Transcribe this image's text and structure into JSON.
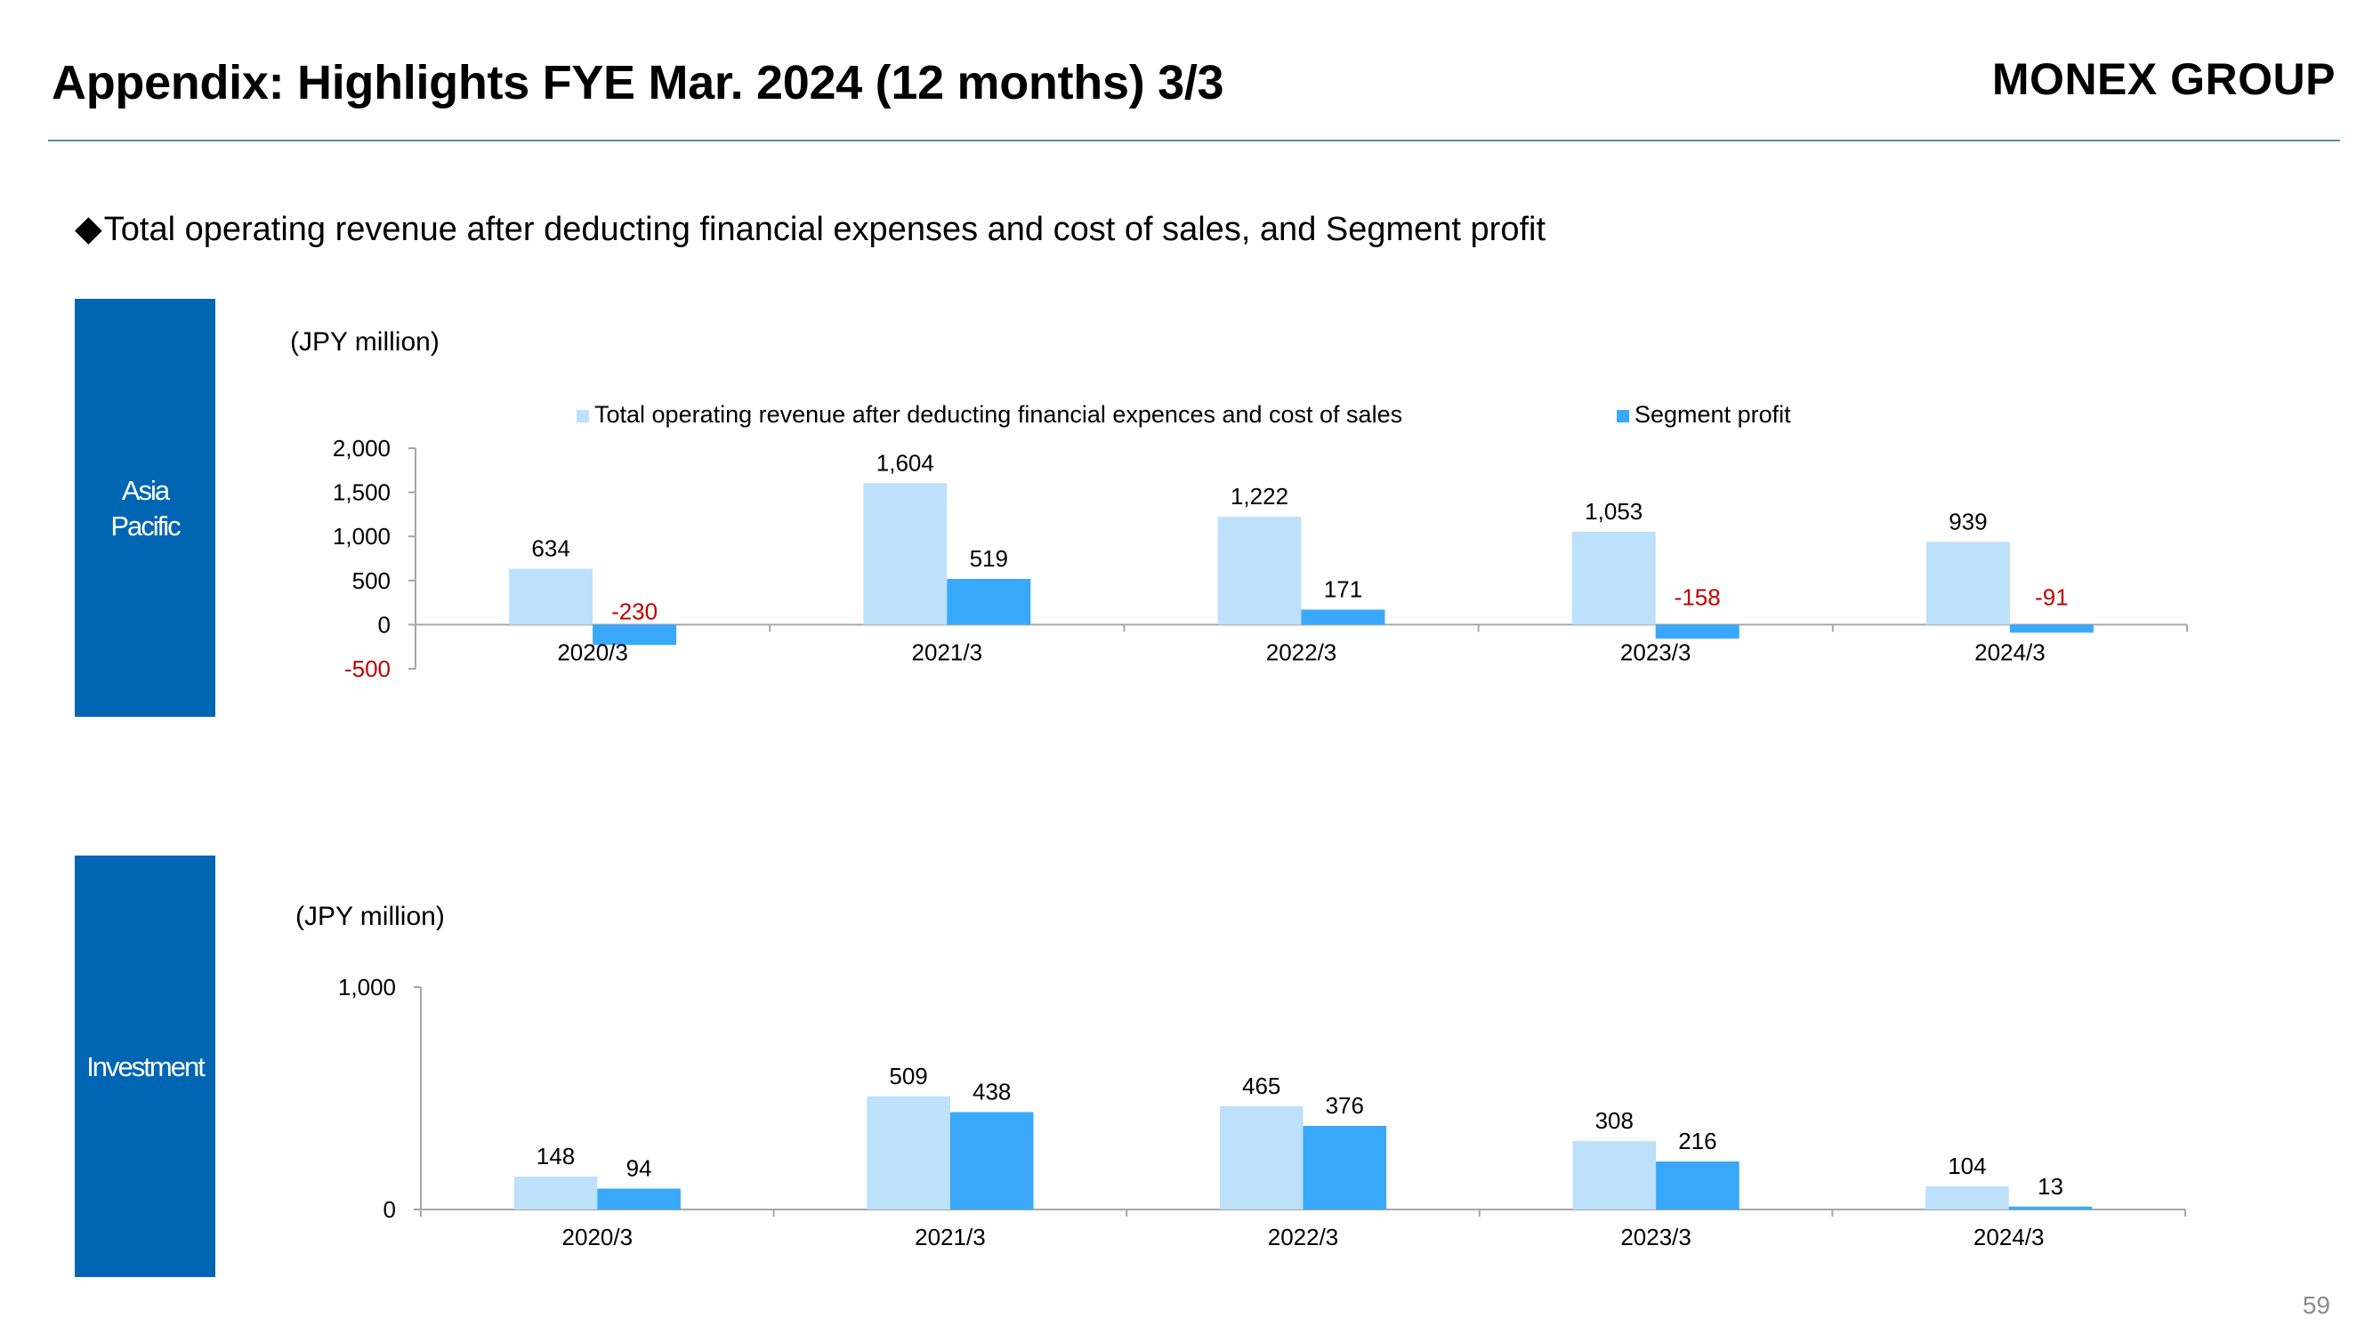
{
  "header": {
    "title": "Appendix: Highlights FYE Mar. 2024 (12 months) 3/3",
    "brand": "MONEX GROUP"
  },
  "subtitle": {
    "bullet": "◆",
    "text": "Total operating revenue after deducting financial expenses and cost of sales, and Segment profit"
  },
  "page_number": "59",
  "colors": {
    "revenue": "#bde0fb",
    "profit": "#3aa8fa",
    "negative_label": "#c00000",
    "segment_box": "#0066b3",
    "axis": "#a6a6a6"
  },
  "segments": [
    {
      "line1": "Asia",
      "line2": "Pacific"
    },
    {
      "line1": "Investment",
      "line2": ""
    }
  ],
  "chart_data": [
    {
      "type": "bar",
      "segment": "Asia Pacific",
      "unit": "(JPY million)",
      "categories": [
        "2020/3",
        "2021/3",
        "2022/3",
        "2023/3",
        "2024/3"
      ],
      "series": [
        {
          "name": "Total operating revenue after deducting financial expences and cost of sales",
          "values": [
            634,
            1604,
            1222,
            1053,
            939
          ]
        },
        {
          "name": "Segment profit",
          "values": [
            -230,
            519,
            171,
            -158,
            -91
          ]
        }
      ],
      "value_labels": [
        [
          "634",
          "1,604",
          "1,222",
          "1,053",
          "939"
        ],
        [
          "-230",
          "519",
          "171",
          "-158",
          "-91"
        ]
      ],
      "yticks": [
        -500,
        0,
        500,
        1000,
        1500,
        2000
      ],
      "ytick_labels": [
        "-500",
        "0",
        "500",
        "1,000",
        "1,500",
        "2,000"
      ],
      "ylim": [
        -500,
        2000
      ],
      "legend_position": "top",
      "grid": false
    },
    {
      "type": "bar",
      "segment": "Investment",
      "unit": "(JPY million)",
      "categories": [
        "2020/3",
        "2021/3",
        "2022/3",
        "2023/3",
        "2024/3"
      ],
      "series": [
        {
          "name": "Total operating revenue after deducting financial expences and cost of sales",
          "values": [
            148,
            509,
            465,
            308,
            104
          ]
        },
        {
          "name": "Segment profit",
          "values": [
            94,
            438,
            376,
            216,
            13
          ]
        }
      ],
      "value_labels": [
        [
          "148",
          "509",
          "465",
          "308",
          "104"
        ],
        [
          "94",
          "438",
          "376",
          "216",
          "13"
        ]
      ],
      "yticks": [
        0,
        1000
      ],
      "ytick_labels": [
        "0",
        "1,000"
      ],
      "ylim": [
        0,
        1000
      ],
      "legend_position": "none",
      "grid": false
    }
  ]
}
